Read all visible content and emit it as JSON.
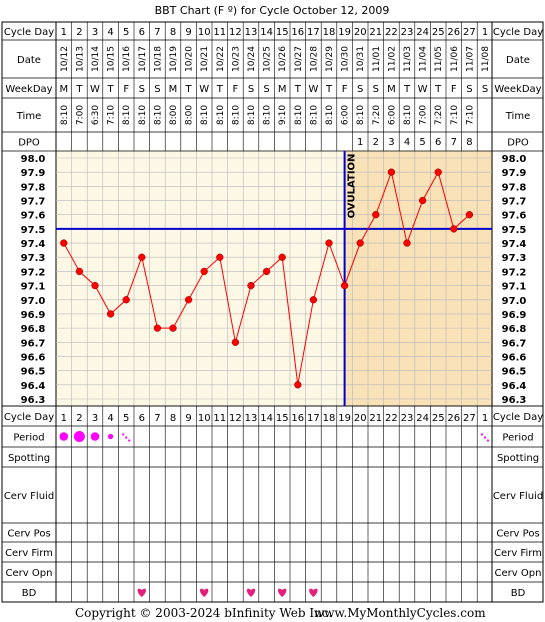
{
  "title": "BBT Chart (F º) for Cycle October 12, 2009",
  "footer": {
    "copyright": "Copyright © 2003-2024 bInfinity Web Inc.",
    "site": "www.MyMonthlyCycles.com"
  },
  "row_labels": {
    "cycle_day": "Cycle Day",
    "date": "Date",
    "weekday": "WeekDay",
    "time": "Time",
    "dpo": "DPO",
    "period": "Period",
    "spotting": "Spotting",
    "cerv_fluid": "Cerv Fluid",
    "cerv_pos": "Cerv Pos",
    "cerv_firm": "Cerv Firm",
    "cerv_opn": "Cerv Opn",
    "bd": "BD"
  },
  "ovulation_label": "OVULATION",
  "colors": {
    "pre_bg": "#fdf8e6",
    "post_bg": "#f9e1b8",
    "grid": "#b8b8b8",
    "temp_line": "#ff0000",
    "coverline": "#0000cc",
    "period": "#ff00ff",
    "bd_heart": "#e0207a"
  },
  "chart_data": {
    "type": "line",
    "title": "BBT Chart (F º) for Cycle October 12, 2009",
    "cycle_days": [
      "1",
      "2",
      "3",
      "4",
      "5",
      "6",
      "7",
      "8",
      "9",
      "10",
      "11",
      "12",
      "13",
      "14",
      "15",
      "16",
      "17",
      "18",
      "19",
      "20",
      "21",
      "22",
      "23",
      "24",
      "25",
      "26",
      "27",
      "1"
    ],
    "dates": [
      "10/12",
      "10/13",
      "10/14",
      "10/15",
      "10/16",
      "10/17",
      "10/18",
      "10/19",
      "10/20",
      "10/21",
      "10/22",
      "10/23",
      "10/24",
      "10/25",
      "10/26",
      "10/27",
      "10/28",
      "10/29",
      "10/30",
      "10/31",
      "11/01",
      "11/02",
      "11/03",
      "11/04",
      "11/05",
      "11/06",
      "11/07",
      "11/08"
    ],
    "weekdays": [
      "M",
      "T",
      "W",
      "T",
      "F",
      "S",
      "S",
      "M",
      "T",
      "W",
      "T",
      "F",
      "S",
      "S",
      "M",
      "T",
      "W",
      "T",
      "F",
      "S",
      "S",
      "M",
      "T",
      "W",
      "T",
      "F",
      "S",
      "S"
    ],
    "times": [
      "8:10",
      "7:00",
      "6:30",
      "7:10",
      "8:10",
      "8:10",
      "8:10",
      "8:00",
      "8:00",
      "8:10",
      "8:10",
      "8:10",
      "8:10",
      "8:10",
      "9:10",
      "8:10",
      "8:10",
      "8:10",
      "6:00",
      "8:10",
      "7:20",
      "6:00",
      "8:10",
      "7:00",
      "7:20",
      "7:10",
      "7:10",
      ""
    ],
    "dpo": [
      "",
      "",
      "",
      "",
      "",
      "",
      "",
      "",
      "",
      "",
      "",
      "",
      "",
      "",
      "",
      "",
      "",
      "",
      "",
      "1",
      "2",
      "3",
      "4",
      "5",
      "6",
      "7",
      "8",
      ""
    ],
    "temps": [
      97.4,
      97.2,
      97.1,
      96.9,
      97.0,
      97.3,
      96.8,
      96.8,
      97.0,
      97.2,
      97.3,
      96.7,
      97.1,
      97.2,
      97.3,
      96.4,
      97.0,
      97.4,
      97.1,
      97.4,
      97.6,
      97.9,
      97.4,
      97.7,
      97.9,
      97.5,
      97.6,
      null
    ],
    "y_ticks": [
      "98.0",
      "97.9",
      "97.8",
      "97.7",
      "97.6",
      "97.5",
      "97.4",
      "97.3",
      "97.2",
      "97.1",
      "97.0",
      "96.9",
      "96.8",
      "96.7",
      "96.6",
      "96.5",
      "96.4",
      "96.3"
    ],
    "ylim": [
      96.3,
      98.0
    ],
    "coverline": 97.5,
    "ovulation_day": 19,
    "period": [
      {
        "day": 1,
        "level": "medium"
      },
      {
        "day": 2,
        "level": "heavy"
      },
      {
        "day": 3,
        "level": "medium"
      },
      {
        "day": 4,
        "level": "light"
      },
      {
        "day": 5,
        "level": "spotting"
      },
      {
        "day": 28,
        "level": "spotting"
      }
    ],
    "bd_days": [
      6,
      10,
      13,
      15,
      17
    ],
    "grid": true
  }
}
